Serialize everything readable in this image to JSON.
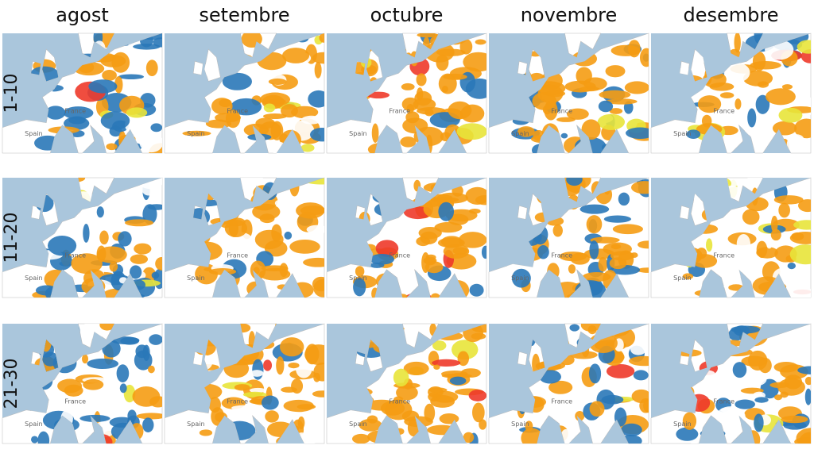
{
  "columns": [
    "agost",
    "setembre",
    "octubre",
    "novembre",
    "desembre"
  ],
  "rows": [
    "1-10",
    "11-20",
    "21-30"
  ],
  "map_labels": [
    "France",
    "Spain"
  ]
}
